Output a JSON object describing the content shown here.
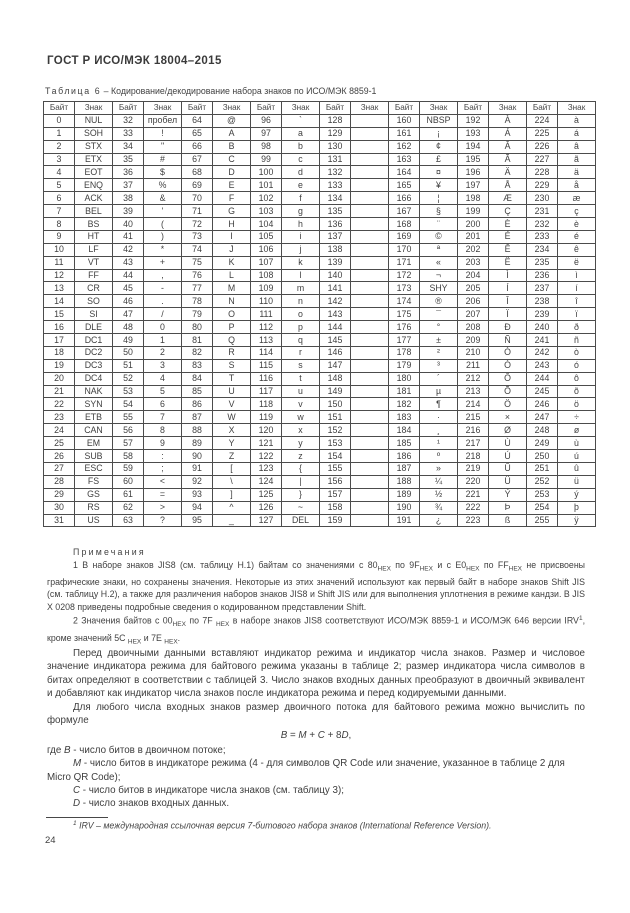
{
  "header": {
    "title": "ГОСТ Р ИСО/МЭК 18004–2015"
  },
  "table": {
    "caption_label": "Таблица 6",
    "caption_rest": " – Кодирование/декодирование набора знаков по ИСО/МЭК 8859-1",
    "col_headers": [
      "Байт",
      "Знак",
      "Байт",
      "Знак",
      "Байт",
      "Знак",
      "Байт",
      "Знак",
      "Байт",
      "Знак",
      "Байт",
      "Знак",
      "Байт",
      "Знак",
      "Байт",
      "Знак"
    ],
    "rows": [
      [
        [
          0,
          "NUL"
        ],
        [
          32,
          "пробел"
        ],
        [
          64,
          "@"
        ],
        [
          96,
          "`"
        ],
        [
          128,
          ""
        ],
        [
          160,
          "NBSP"
        ],
        [
          192,
          "À"
        ],
        [
          224,
          "à"
        ]
      ],
      [
        [
          1,
          "SOH"
        ],
        [
          33,
          "!"
        ],
        [
          65,
          "A"
        ],
        [
          97,
          "a"
        ],
        [
          129,
          ""
        ],
        [
          161,
          "¡"
        ],
        [
          193,
          "Á"
        ],
        [
          225,
          "á"
        ]
      ],
      [
        [
          2,
          "STX"
        ],
        [
          34,
          "\""
        ],
        [
          66,
          "B"
        ],
        [
          98,
          "b"
        ],
        [
          130,
          ""
        ],
        [
          162,
          "¢"
        ],
        [
          194,
          "Â"
        ],
        [
          226,
          "â"
        ]
      ],
      [
        [
          3,
          "ETX"
        ],
        [
          35,
          "#"
        ],
        [
          67,
          "C"
        ],
        [
          99,
          "c"
        ],
        [
          131,
          ""
        ],
        [
          163,
          "£"
        ],
        [
          195,
          "Ã"
        ],
        [
          227,
          "ã"
        ]
      ],
      [
        [
          4,
          "EOT"
        ],
        [
          36,
          "$"
        ],
        [
          68,
          "D"
        ],
        [
          100,
          "d"
        ],
        [
          132,
          ""
        ],
        [
          164,
          "¤"
        ],
        [
          196,
          "Ä"
        ],
        [
          228,
          "ä"
        ]
      ],
      [
        [
          5,
          "ENQ"
        ],
        [
          37,
          "%"
        ],
        [
          69,
          "E"
        ],
        [
          101,
          "e"
        ],
        [
          133,
          ""
        ],
        [
          165,
          "¥"
        ],
        [
          197,
          "Å"
        ],
        [
          229,
          "å"
        ]
      ],
      [
        [
          6,
          "ACK"
        ],
        [
          38,
          "&"
        ],
        [
          70,
          "F"
        ],
        [
          102,
          "f"
        ],
        [
          134,
          ""
        ],
        [
          166,
          "¦"
        ],
        [
          198,
          "Æ"
        ],
        [
          230,
          "æ"
        ]
      ],
      [
        [
          7,
          "BEL"
        ],
        [
          39,
          "'"
        ],
        [
          71,
          "G"
        ],
        [
          103,
          "g"
        ],
        [
          135,
          ""
        ],
        [
          167,
          "§"
        ],
        [
          199,
          "Ç"
        ],
        [
          231,
          "ç"
        ]
      ],
      [
        [
          8,
          "BS"
        ],
        [
          40,
          "("
        ],
        [
          72,
          "H"
        ],
        [
          104,
          "h"
        ],
        [
          136,
          ""
        ],
        [
          168,
          "¨"
        ],
        [
          200,
          "È"
        ],
        [
          232,
          "è"
        ]
      ],
      [
        [
          9,
          "HT"
        ],
        [
          41,
          ")"
        ],
        [
          73,
          "I"
        ],
        [
          105,
          "i"
        ],
        [
          137,
          ""
        ],
        [
          169,
          "©"
        ],
        [
          201,
          "É"
        ],
        [
          233,
          "é"
        ]
      ],
      [
        [
          10,
          "LF"
        ],
        [
          42,
          "*"
        ],
        [
          74,
          "J"
        ],
        [
          106,
          "j"
        ],
        [
          138,
          ""
        ],
        [
          170,
          "ª"
        ],
        [
          202,
          "Ê"
        ],
        [
          234,
          "ê"
        ]
      ],
      [
        [
          11,
          "VT"
        ],
        [
          43,
          "+"
        ],
        [
          75,
          "K"
        ],
        [
          107,
          "k"
        ],
        [
          139,
          ""
        ],
        [
          171,
          "«"
        ],
        [
          203,
          "Ë"
        ],
        [
          235,
          "ë"
        ]
      ],
      [
        [
          12,
          "FF"
        ],
        [
          44,
          ","
        ],
        [
          76,
          "L"
        ],
        [
          108,
          "l"
        ],
        [
          140,
          ""
        ],
        [
          172,
          "¬"
        ],
        [
          204,
          "Ì"
        ],
        [
          236,
          "ì"
        ]
      ],
      [
        [
          13,
          "CR"
        ],
        [
          45,
          "-"
        ],
        [
          77,
          "M"
        ],
        [
          109,
          "m"
        ],
        [
          141,
          ""
        ],
        [
          173,
          "SHY"
        ],
        [
          205,
          "Í"
        ],
        [
          237,
          "í"
        ]
      ],
      [
        [
          14,
          "SO"
        ],
        [
          46,
          "."
        ],
        [
          78,
          "N"
        ],
        [
          110,
          "n"
        ],
        [
          142,
          ""
        ],
        [
          174,
          "®"
        ],
        [
          206,
          "Î"
        ],
        [
          238,
          "î"
        ]
      ],
      [
        [
          15,
          "SI"
        ],
        [
          47,
          "/"
        ],
        [
          79,
          "O"
        ],
        [
          111,
          "o"
        ],
        [
          143,
          ""
        ],
        [
          175,
          "¯"
        ],
        [
          207,
          "Ï"
        ],
        [
          239,
          "ï"
        ]
      ],
      [
        [
          16,
          "DLE"
        ],
        [
          48,
          "0"
        ],
        [
          80,
          "P"
        ],
        [
          112,
          "p"
        ],
        [
          144,
          ""
        ],
        [
          176,
          "°"
        ],
        [
          208,
          "Ð"
        ],
        [
          240,
          "ð"
        ]
      ],
      [
        [
          17,
          "DC1"
        ],
        [
          49,
          "1"
        ],
        [
          81,
          "Q"
        ],
        [
          113,
          "q"
        ],
        [
          145,
          ""
        ],
        [
          177,
          "±"
        ],
        [
          209,
          "Ñ"
        ],
        [
          241,
          "ñ"
        ]
      ],
      [
        [
          18,
          "DC2"
        ],
        [
          50,
          "2"
        ],
        [
          82,
          "R"
        ],
        [
          114,
          "r"
        ],
        [
          146,
          ""
        ],
        [
          178,
          "²"
        ],
        [
          210,
          "Ò"
        ],
        [
          242,
          "ò"
        ]
      ],
      [
        [
          19,
          "DC3"
        ],
        [
          51,
          "3"
        ],
        [
          83,
          "S"
        ],
        [
          115,
          "s"
        ],
        [
          147,
          ""
        ],
        [
          179,
          "³"
        ],
        [
          211,
          "Ó"
        ],
        [
          243,
          "ó"
        ]
      ],
      [
        [
          20,
          "DC4"
        ],
        [
          52,
          "4"
        ],
        [
          84,
          "T"
        ],
        [
          116,
          "t"
        ],
        [
          148,
          ""
        ],
        [
          180,
          "´"
        ],
        [
          212,
          "Ô"
        ],
        [
          244,
          "ô"
        ]
      ],
      [
        [
          21,
          "NAK"
        ],
        [
          53,
          "5"
        ],
        [
          85,
          "U"
        ],
        [
          117,
          "u"
        ],
        [
          149,
          ""
        ],
        [
          181,
          "µ"
        ],
        [
          213,
          "Õ"
        ],
        [
          245,
          "õ"
        ]
      ],
      [
        [
          22,
          "SYN"
        ],
        [
          54,
          "6"
        ],
        [
          86,
          "V"
        ],
        [
          118,
          "v"
        ],
        [
          150,
          ""
        ],
        [
          182,
          "¶"
        ],
        [
          214,
          "Ö"
        ],
        [
          246,
          "ö"
        ]
      ],
      [
        [
          23,
          "ETB"
        ],
        [
          55,
          "7"
        ],
        [
          87,
          "W"
        ],
        [
          119,
          "w"
        ],
        [
          151,
          ""
        ],
        [
          183,
          "·"
        ],
        [
          215,
          "×"
        ],
        [
          247,
          "÷"
        ]
      ],
      [
        [
          24,
          "CAN"
        ],
        [
          56,
          "8"
        ],
        [
          88,
          "X"
        ],
        [
          120,
          "x"
        ],
        [
          152,
          ""
        ],
        [
          184,
          "¸"
        ],
        [
          216,
          "Ø"
        ],
        [
          248,
          "ø"
        ]
      ],
      [
        [
          25,
          "EM"
        ],
        [
          57,
          "9"
        ],
        [
          89,
          "Y"
        ],
        [
          121,
          "y"
        ],
        [
          153,
          ""
        ],
        [
          185,
          "¹"
        ],
        [
          217,
          "Ù"
        ],
        [
          249,
          "ù"
        ]
      ],
      [
        [
          26,
          "SUB"
        ],
        [
          58,
          ":"
        ],
        [
          90,
          "Z"
        ],
        [
          122,
          "z"
        ],
        [
          154,
          ""
        ],
        [
          186,
          "º"
        ],
        [
          218,
          "Ú"
        ],
        [
          250,
          "ú"
        ]
      ],
      [
        [
          27,
          "ESC"
        ],
        [
          59,
          ";"
        ],
        [
          91,
          "["
        ],
        [
          123,
          "{"
        ],
        [
          155,
          ""
        ],
        [
          187,
          "»"
        ],
        [
          219,
          "Û"
        ],
        [
          251,
          "û"
        ]
      ],
      [
        [
          28,
          "FS"
        ],
        [
          60,
          "<"
        ],
        [
          92,
          "\\"
        ],
        [
          124,
          "|"
        ],
        [
          156,
          ""
        ],
        [
          188,
          "¼"
        ],
        [
          220,
          "Ü"
        ],
        [
          252,
          "ü"
        ]
      ],
      [
        [
          29,
          "GS"
        ],
        [
          61,
          "="
        ],
        [
          93,
          "]"
        ],
        [
          125,
          "}"
        ],
        [
          157,
          ""
        ],
        [
          189,
          "½"
        ],
        [
          221,
          "Ý"
        ],
        [
          253,
          "ý"
        ]
      ],
      [
        [
          30,
          "RS"
        ],
        [
          62,
          ">"
        ],
        [
          94,
          "^"
        ],
        [
          126,
          "~"
        ],
        [
          158,
          ""
        ],
        [
          190,
          "¾"
        ],
        [
          222,
          "Þ"
        ],
        [
          254,
          "þ"
        ]
      ],
      [
        [
          31,
          "US"
        ],
        [
          63,
          "?"
        ],
        [
          95,
          "_"
        ],
        [
          127,
          "DEL"
        ],
        [
          159,
          ""
        ],
        [
          191,
          "¿"
        ],
        [
          223,
          "ß"
        ],
        [
          255,
          "ÿ"
        ]
      ]
    ]
  },
  "notes": {
    "title": "Примечания",
    "note1": [
      {
        "t": "1 В наборе знаков JIS8 (см. таблицу Н.1) байтам со значениями с 80"
      },
      {
        "t": "HEX",
        "s": "sub"
      },
      {
        "t": " по 9F"
      },
      {
        "t": "HEX",
        "s": "sub"
      },
      {
        "t": " и с E0"
      },
      {
        "t": "HEX",
        "s": "sub"
      },
      {
        "t": " по FF"
      },
      {
        "t": "HEX",
        "s": "sub"
      },
      {
        "t": " не присвоены графические знаки, но сохранены значения. Некоторые из этих значений используют как первый байт в наборе знаков Shift JIS (см. таблицу Н.2), а также для различения наборов знаков JIS8 и Shift JIS или для выполнения уплотнения в режиме кандзи. В JIS X 0208 приведены подробные сведения о кодированном представлении Shift."
      }
    ],
    "note2": [
      {
        "t": "2 Значения байтов с 00"
      },
      {
        "t": "HEX",
        "s": "sub"
      },
      {
        "t": " по 7F "
      },
      {
        "t": "HEX",
        "s": "sub"
      },
      {
        "t": " в наборе знаков JIS8 соответствуют ИСО/МЭК 8859-1 и ИСО/МЭК 646 версии IRV"
      },
      {
        "t": "1",
        "s": "sup"
      },
      {
        "t": ", кроме значений 5C "
      },
      {
        "t": "HEX",
        "s": "sub"
      },
      {
        "t": " и 7E "
      },
      {
        "t": "HEX",
        "s": "sub"
      },
      {
        "t": "."
      }
    ]
  },
  "body": {
    "para1": "Перед двоичными данными вставляют индикатор режима и индикатор числа знаков. Размер и числовое значение индикатора режима для байтового режима указаны в таблице 2; размер индикатора числа символов в битах определяют в соответствии с таблицей 3. Число знаков входных данных преобразуют в двоичный эквивалент и добавляют как индикатор числа знаков после индикатора режима и перед кодируемыми данными.",
    "para2": "Для любого числа входных знаков размер двоичного потока для байтового режима можно вычислить по формуле",
    "formula": [
      {
        "t": "B",
        "s": "i"
      },
      {
        "t": " = "
      },
      {
        "t": "M",
        "s": "i"
      },
      {
        "t": " + "
      },
      {
        "t": "C",
        "s": "i"
      },
      {
        "t": " + 8"
      },
      {
        "t": "D",
        "s": "i"
      },
      {
        "t": ","
      }
    ],
    "def_b": [
      {
        "t": "где "
      },
      {
        "t": "B",
        "s": "i"
      },
      {
        "t": " - число битов в двоичном потоке;"
      }
    ],
    "def_m": [
      {
        "t": "M",
        "s": "i"
      },
      {
        "t": " - число битов в индикаторе режима (4 - для символов QR Code или значение, указанное в таблице 2 для Micro QR Code);"
      }
    ],
    "def_c": [
      {
        "t": "C",
        "s": "i"
      },
      {
        "t": " - число битов в индикаторе числа знаков (см. таблицу 3);"
      }
    ],
    "def_d": [
      {
        "t": "D",
        "s": "i"
      },
      {
        "t": " - число знаков входных данных."
      }
    ]
  },
  "footnote": {
    "text": [
      {
        "t": "1",
        "s": "sup"
      },
      {
        "t": " IRV – международная ссылочная версия 7-битового набора знаков (International Reference Version)."
      }
    ]
  },
  "footer": {
    "page_number": "24"
  }
}
